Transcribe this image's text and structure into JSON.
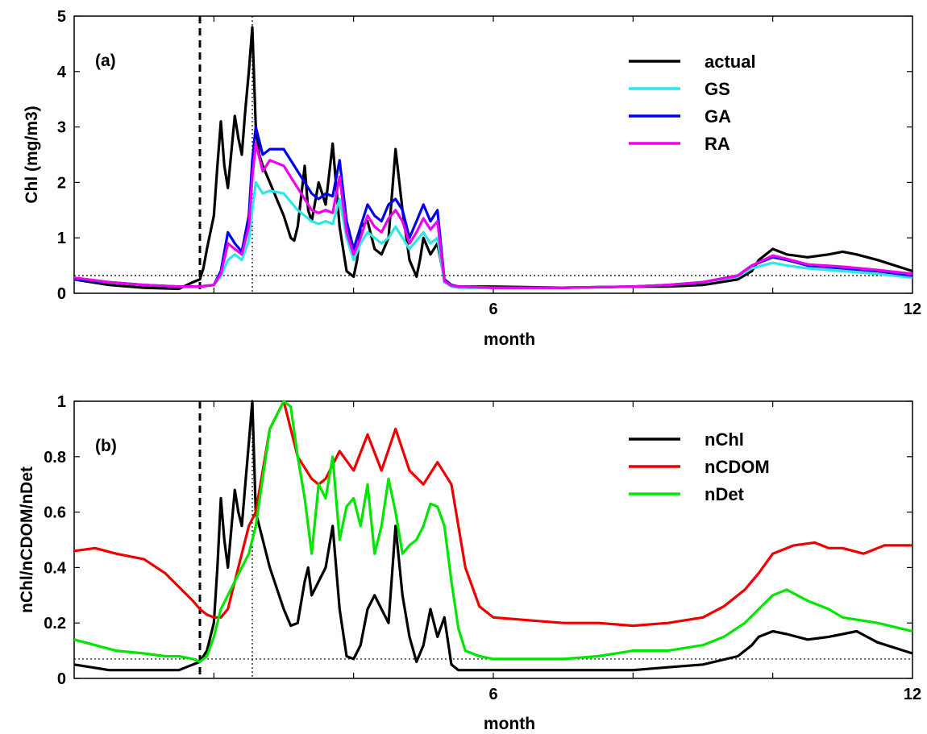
{
  "chart_data": [
    {
      "panel_label": "(a)",
      "type": "line",
      "xlabel": "month",
      "ylabel": "Chl (mg/m3)",
      "xlim": [
        0,
        12
      ],
      "ylim": [
        0,
        5
      ],
      "xticks": [
        6,
        12
      ],
      "yticks": [
        0,
        1,
        2,
        3,
        4,
        5
      ],
      "legend_position": "top-right",
      "vline_dashed": 1.8,
      "vline_dotted": 2.55,
      "hline_dotted": 0.32,
      "series": [
        {
          "name": "actual",
          "color": "#000000",
          "x": [
            0,
            0.5,
            1.0,
            1.5,
            1.7,
            1.8,
            1.85,
            1.9,
            2.0,
            2.05,
            2.1,
            2.15,
            2.2,
            2.3,
            2.35,
            2.4,
            2.45,
            2.5,
            2.55,
            2.6,
            2.65,
            2.7,
            2.8,
            3.0,
            3.1,
            3.15,
            3.2,
            3.3,
            3.35,
            3.4,
            3.5,
            3.6,
            3.7,
            3.8,
            3.9,
            4.0,
            4.05,
            4.1,
            4.2,
            4.3,
            4.4,
            4.5,
            4.6,
            4.7,
            4.8,
            4.9,
            4.95,
            5.0,
            5.1,
            5.2,
            5.3,
            5.4,
            5.5,
            5.6,
            6.0,
            7.0,
            8.0,
            8.5,
            9.0,
            9.5,
            9.7,
            9.8,
            10.0,
            10.2,
            10.5,
            10.8,
            11.0,
            11.2,
            11.5,
            12.0
          ],
          "y": [
            0.25,
            0.15,
            0.1,
            0.08,
            0.2,
            0.25,
            0.45,
            0.8,
            1.4,
            2.3,
            3.1,
            2.3,
            1.9,
            3.2,
            2.8,
            2.5,
            3.3,
            4.0,
            4.8,
            3.0,
            2.5,
            2.3,
            2.0,
            1.4,
            1.0,
            0.95,
            1.2,
            2.3,
            1.5,
            1.3,
            2.0,
            1.6,
            2.7,
            1.2,
            0.4,
            0.3,
            0.6,
            1.2,
            1.3,
            0.8,
            0.7,
            1.0,
            2.6,
            1.5,
            0.6,
            0.3,
            0.6,
            1.0,
            0.7,
            0.9,
            0.25,
            0.15,
            0.12,
            0.12,
            0.12,
            0.1,
            0.12,
            0.12,
            0.15,
            0.25,
            0.4,
            0.6,
            0.8,
            0.7,
            0.65,
            0.7,
            0.75,
            0.7,
            0.6,
            0.4
          ]
        },
        {
          "name": "GS",
          "color": "#2de6e6",
          "x": [
            0,
            0.5,
            1.0,
            1.5,
            1.8,
            2.0,
            2.1,
            2.2,
            2.3,
            2.4,
            2.5,
            2.55,
            2.6,
            2.7,
            2.8,
            3.0,
            3.2,
            3.4,
            3.5,
            3.6,
            3.7,
            3.8,
            3.9,
            4.0,
            4.1,
            4.2,
            4.3,
            4.4,
            4.5,
            4.6,
            4.7,
            4.8,
            4.9,
            5.0,
            5.1,
            5.2,
            5.3,
            5.4,
            5.5,
            6.0,
            7.0,
            8.0,
            8.5,
            9.0,
            9.5,
            9.7,
            10.0,
            10.2,
            10.5,
            11.0,
            11.5,
            12.0
          ],
          "y": [
            0.25,
            0.2,
            0.15,
            0.12,
            0.12,
            0.15,
            0.3,
            0.6,
            0.7,
            0.6,
            0.95,
            1.5,
            2.0,
            1.8,
            1.85,
            1.8,
            1.5,
            1.3,
            1.25,
            1.3,
            1.25,
            1.7,
            1.0,
            0.6,
            0.9,
            1.1,
            1.0,
            0.9,
            1.0,
            1.2,
            1.0,
            0.8,
            0.95,
            1.1,
            0.9,
            1.0,
            0.2,
            0.12,
            0.1,
            0.1,
            0.1,
            0.12,
            0.15,
            0.2,
            0.3,
            0.45,
            0.55,
            0.5,
            0.45,
            0.4,
            0.35,
            0.28
          ]
        },
        {
          "name": "GA",
          "color": "#0000ee",
          "x": [
            0,
            0.5,
            1.0,
            1.5,
            1.8,
            2.0,
            2.1,
            2.2,
            2.3,
            2.4,
            2.5,
            2.55,
            2.6,
            2.7,
            2.8,
            3.0,
            3.2,
            3.4,
            3.5,
            3.6,
            3.7,
            3.8,
            3.9,
            4.0,
            4.1,
            4.2,
            4.3,
            4.4,
            4.5,
            4.6,
            4.7,
            4.8,
            4.9,
            5.0,
            5.1,
            5.2,
            5.3,
            5.4,
            5.5,
            6.0,
            7.0,
            8.0,
            8.5,
            9.0,
            9.5,
            9.7,
            10.0,
            10.2,
            10.5,
            11.0,
            11.5,
            12.0
          ],
          "y": [
            0.25,
            0.2,
            0.15,
            0.12,
            0.12,
            0.15,
            0.4,
            1.1,
            0.9,
            0.75,
            1.4,
            2.4,
            3.0,
            2.5,
            2.6,
            2.6,
            2.2,
            1.8,
            1.7,
            1.8,
            1.75,
            2.4,
            1.3,
            0.8,
            1.2,
            1.6,
            1.4,
            1.3,
            1.6,
            1.7,
            1.5,
            1.0,
            1.3,
            1.6,
            1.3,
            1.5,
            0.25,
            0.15,
            0.12,
            0.1,
            0.1,
            0.12,
            0.15,
            0.2,
            0.32,
            0.5,
            0.65,
            0.6,
            0.5,
            0.45,
            0.4,
            0.32
          ]
        },
        {
          "name": "RA",
          "color": "#ee00ee",
          "x": [
            0,
            0.5,
            1.0,
            1.5,
            1.8,
            2.0,
            2.1,
            2.2,
            2.3,
            2.4,
            2.5,
            2.55,
            2.6,
            2.7,
            2.8,
            3.0,
            3.2,
            3.4,
            3.5,
            3.6,
            3.7,
            3.8,
            3.9,
            4.0,
            4.1,
            4.2,
            4.3,
            4.4,
            4.5,
            4.6,
            4.7,
            4.8,
            4.9,
            5.0,
            5.1,
            5.2,
            5.3,
            5.4,
            5.5,
            6.0,
            7.0,
            8.0,
            8.5,
            9.0,
            9.5,
            9.7,
            10.0,
            10.2,
            10.5,
            11.0,
            11.5,
            12.0
          ],
          "y": [
            0.28,
            0.2,
            0.15,
            0.12,
            0.12,
            0.15,
            0.35,
            0.9,
            0.8,
            0.7,
            1.2,
            2.1,
            2.7,
            2.2,
            2.4,
            2.3,
            1.9,
            1.5,
            1.45,
            1.5,
            1.45,
            2.1,
            1.1,
            0.7,
            1.0,
            1.4,
            1.2,
            1.1,
            1.35,
            1.5,
            1.3,
            0.9,
            1.1,
            1.35,
            1.15,
            1.3,
            0.22,
            0.14,
            0.12,
            0.1,
            0.1,
            0.12,
            0.15,
            0.2,
            0.32,
            0.5,
            0.68,
            0.62,
            0.52,
            0.48,
            0.42,
            0.35
          ]
        }
      ]
    },
    {
      "panel_label": "(b)",
      "type": "line",
      "xlabel": "month",
      "ylabel": "nChl/nCDOM/nDet",
      "xlim": [
        0,
        12
      ],
      "ylim": [
        0,
        1
      ],
      "xticks": [
        6,
        12
      ],
      "yticks": [
        0,
        0.2,
        0.4,
        0.6,
        0.8,
        1
      ],
      "legend_position": "top-right",
      "vline_dashed": 1.8,
      "vline_dotted": 2.55,
      "hline_dotted": 0.07,
      "series": [
        {
          "name": "nChl",
          "color": "#000000",
          "x": [
            0,
            0.5,
            1.0,
            1.5,
            1.7,
            1.8,
            1.9,
            2.0,
            2.05,
            2.1,
            2.15,
            2.2,
            2.3,
            2.35,
            2.4,
            2.45,
            2.5,
            2.55,
            2.6,
            2.7,
            2.8,
            3.0,
            3.1,
            3.2,
            3.3,
            3.35,
            3.4,
            3.5,
            3.6,
            3.7,
            3.8,
            3.9,
            4.0,
            4.1,
            4.2,
            4.3,
            4.4,
            4.5,
            4.6,
            4.7,
            4.8,
            4.9,
            5.0,
            5.1,
            5.2,
            5.3,
            5.4,
            5.5,
            5.6,
            6.0,
            7.0,
            8.0,
            8.5,
            9.0,
            9.5,
            9.7,
            9.8,
            10.0,
            10.2,
            10.5,
            10.8,
            11.0,
            11.2,
            11.5,
            12.0
          ],
          "y": [
            0.05,
            0.03,
            0.03,
            0.03,
            0.05,
            0.06,
            0.1,
            0.2,
            0.4,
            0.65,
            0.5,
            0.4,
            0.68,
            0.6,
            0.55,
            0.7,
            0.85,
            1.0,
            0.6,
            0.5,
            0.4,
            0.25,
            0.19,
            0.2,
            0.35,
            0.4,
            0.3,
            0.35,
            0.4,
            0.55,
            0.25,
            0.08,
            0.07,
            0.12,
            0.25,
            0.3,
            0.25,
            0.2,
            0.55,
            0.3,
            0.15,
            0.06,
            0.12,
            0.25,
            0.15,
            0.22,
            0.05,
            0.03,
            0.03,
            0.03,
            0.03,
            0.03,
            0.04,
            0.05,
            0.08,
            0.12,
            0.15,
            0.17,
            0.16,
            0.14,
            0.15,
            0.16,
            0.17,
            0.13,
            0.09
          ]
        },
        {
          "name": "nCDOM",
          "color": "#ee0000",
          "x": [
            0,
            0.3,
            0.6,
            1.0,
            1.3,
            1.5,
            1.7,
            1.8,
            1.9,
            2.0,
            2.1,
            2.2,
            2.3,
            2.4,
            2.5,
            2.6,
            2.8,
            3.0,
            3.2,
            3.4,
            3.5,
            3.6,
            3.8,
            4.0,
            4.2,
            4.4,
            4.6,
            4.8,
            5.0,
            5.2,
            5.4,
            5.6,
            5.8,
            6.0,
            6.5,
            7.0,
            7.5,
            8.0,
            8.5,
            9.0,
            9.3,
            9.6,
            9.8,
            10.0,
            10.3,
            10.6,
            10.8,
            11.0,
            11.3,
            11.6,
            12.0
          ],
          "y": [
            0.46,
            0.47,
            0.45,
            0.43,
            0.38,
            0.33,
            0.28,
            0.25,
            0.23,
            0.22,
            0.22,
            0.25,
            0.35,
            0.45,
            0.55,
            0.6,
            0.9,
            1.0,
            0.8,
            0.72,
            0.7,
            0.72,
            0.82,
            0.75,
            0.88,
            0.75,
            0.9,
            0.75,
            0.7,
            0.78,
            0.7,
            0.4,
            0.26,
            0.22,
            0.21,
            0.2,
            0.2,
            0.19,
            0.2,
            0.22,
            0.26,
            0.32,
            0.38,
            0.45,
            0.48,
            0.49,
            0.47,
            0.47,
            0.45,
            0.48,
            0.48
          ]
        },
        {
          "name": "nDet",
          "color": "#00e600",
          "x": [
            0,
            0.3,
            0.6,
            1.0,
            1.3,
            1.5,
            1.7,
            1.8,
            1.9,
            2.0,
            2.1,
            2.2,
            2.3,
            2.4,
            2.5,
            2.55,
            2.6,
            2.8,
            2.9,
            3.0,
            3.1,
            3.2,
            3.3,
            3.4,
            3.5,
            3.6,
            3.7,
            3.8,
            3.9,
            4.0,
            4.1,
            4.2,
            4.3,
            4.4,
            4.5,
            4.6,
            4.7,
            4.8,
            4.9,
            5.0,
            5.1,
            5.2,
            5.3,
            5.4,
            5.5,
            5.6,
            5.8,
            6.0,
            7.0,
            7.5,
            8.0,
            8.5,
            9.0,
            9.3,
            9.6,
            9.8,
            10.0,
            10.2,
            10.5,
            10.8,
            11.0,
            11.5,
            12.0
          ],
          "y": [
            0.14,
            0.12,
            0.1,
            0.09,
            0.08,
            0.08,
            0.07,
            0.06,
            0.08,
            0.15,
            0.25,
            0.3,
            0.35,
            0.4,
            0.45,
            0.5,
            0.55,
            0.9,
            0.95,
            1.0,
            0.98,
            0.8,
            0.65,
            0.45,
            0.7,
            0.65,
            0.8,
            0.5,
            0.62,
            0.65,
            0.55,
            0.7,
            0.45,
            0.55,
            0.72,
            0.6,
            0.45,
            0.48,
            0.5,
            0.55,
            0.63,
            0.62,
            0.55,
            0.35,
            0.18,
            0.1,
            0.08,
            0.07,
            0.07,
            0.08,
            0.1,
            0.1,
            0.12,
            0.15,
            0.2,
            0.25,
            0.3,
            0.32,
            0.28,
            0.25,
            0.22,
            0.2,
            0.17
          ]
        }
      ]
    }
  ]
}
